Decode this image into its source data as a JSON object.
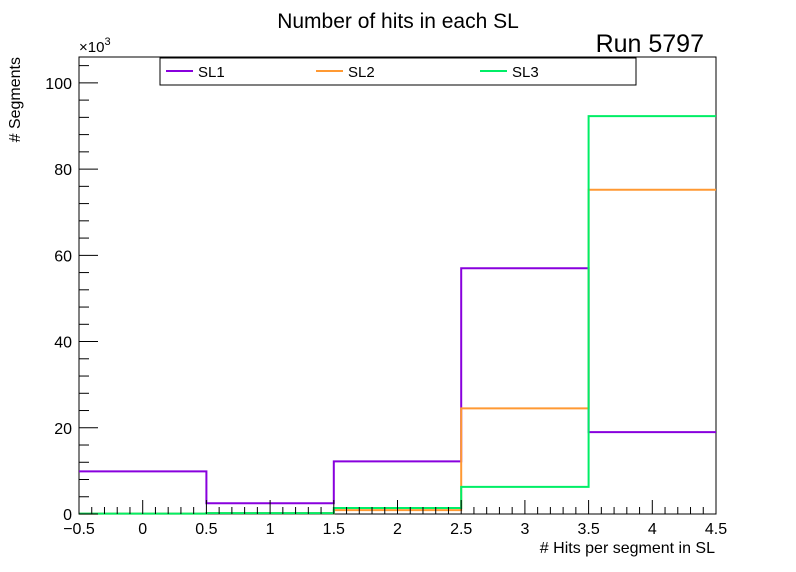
{
  "chart_data": {
    "type": "step-histogram",
    "title": "Number of hits in each SL",
    "annotation": "Run 5797",
    "xlabel": "# Hits per segment in SL",
    "ylabel": "# Segments",
    "y_multiplier_prefix": "×10",
    "y_multiplier_exponent": "3",
    "xlim": [
      -0.5,
      4.5
    ],
    "ylim": [
      0,
      106
    ],
    "x_ticks": [
      -0.5,
      0,
      0.5,
      1,
      1.5,
      2,
      2.5,
      3,
      3.5,
      4,
      4.5
    ],
    "x_tick_labels": [
      "−0.5",
      "0",
      "0.5",
      "1",
      "1.5",
      "2",
      "2.5",
      "3",
      "3.5",
      "4",
      "4.5"
    ],
    "y_ticks": [
      0,
      20,
      40,
      60,
      80,
      100
    ],
    "y_tick_labels": [
      "0",
      "20",
      "40",
      "60",
      "80",
      "100"
    ],
    "bin_edges": [
      -0.5,
      0.5,
      1.5,
      2.5,
      3.5,
      4.5
    ],
    "legend_position": "top",
    "series": [
      {
        "name": "SL1",
        "color": "#8800dd",
        "values": [
          9.9,
          2.5,
          12.2,
          57.0,
          19.0
        ]
      },
      {
        "name": "SL2",
        "color": "#ff9933",
        "values": [
          0.1,
          0.2,
          0.9,
          24.5,
          75.2
        ]
      },
      {
        "name": "SL3",
        "color": "#00ee66",
        "values": [
          0.1,
          0.2,
          1.4,
          6.3,
          92.3
        ]
      }
    ]
  }
}
